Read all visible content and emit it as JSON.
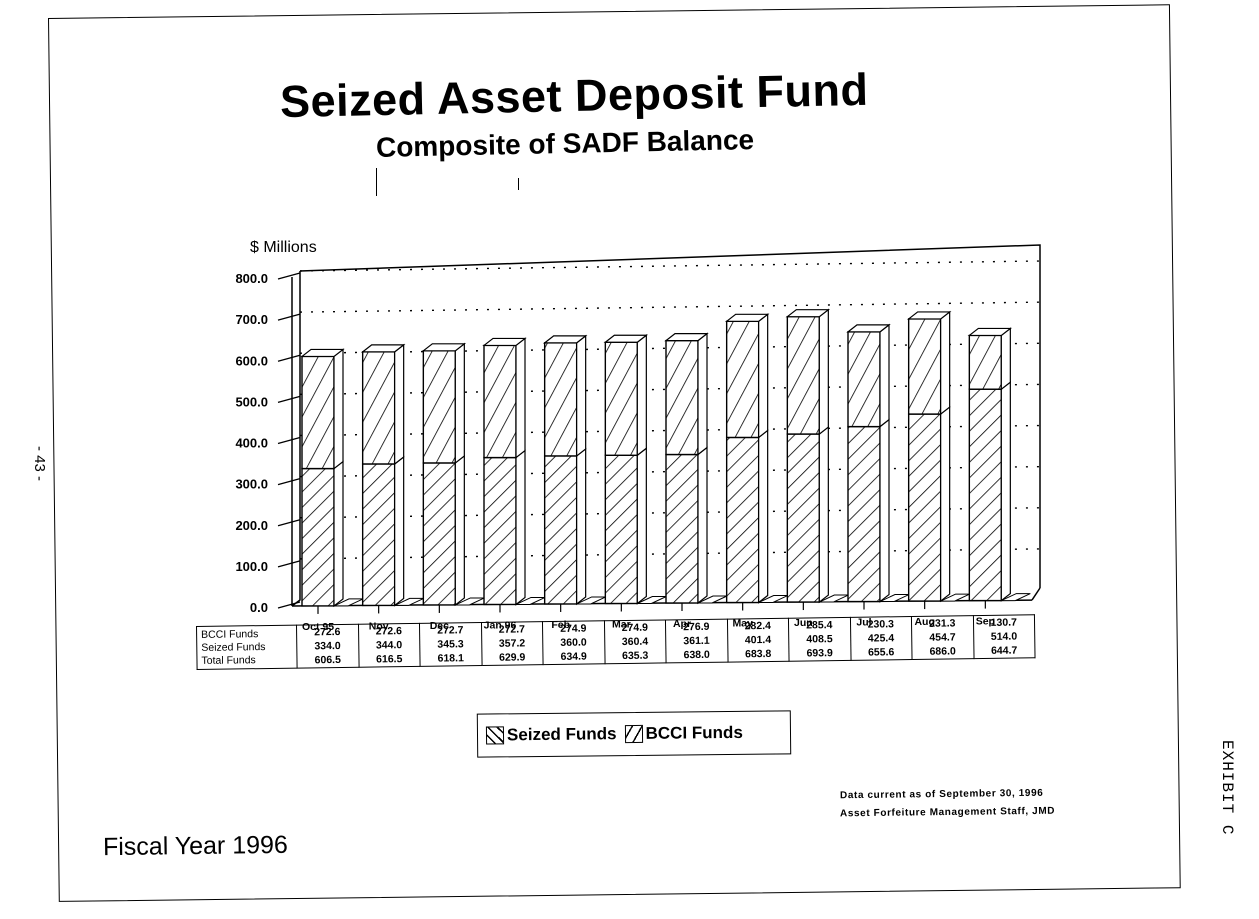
{
  "page": {
    "title": "Seized Asset Deposit Fund",
    "subtitle": "Composite of SADF Balance",
    "page_number": "- 43 -",
    "exhibit_label": "EXHIBIT C",
    "fiscal_year_label": "Fiscal Year 1996",
    "footnote_date": "Data current as of September 30, 1996",
    "footnote_source": "Asset Forfeiture Management Staff, JMD"
  },
  "legend": {
    "seized_label": "Seized Funds",
    "bcci_label": "BCCI Funds"
  },
  "table": {
    "row_headers": [
      "BCCI Funds",
      "Seized Funds",
      "Total Funds"
    ],
    "columns": [
      {
        "month": "Oct 95",
        "bcci": "272.6",
        "seized": "334.0",
        "total": "606.5"
      },
      {
        "month": "Nov",
        "bcci": "272.6",
        "seized": "344.0",
        "total": "616.5"
      },
      {
        "month": "Dec",
        "bcci": "272.7",
        "seized": "345.3",
        "total": "618.1"
      },
      {
        "month": "Jan 96",
        "bcci": "272.7",
        "seized": "357.2",
        "total": "629.9"
      },
      {
        "month": "Feb",
        "bcci": "274.9",
        "seized": "360.0",
        "total": "634.9"
      },
      {
        "month": "Mar",
        "bcci": "274.9",
        "seized": "360.4",
        "total": "635.3"
      },
      {
        "month": "Apr",
        "bcci": "276.9",
        "seized": "361.1",
        "total": "638.0"
      },
      {
        "month": "May",
        "bcci": "282.4",
        "seized": "401.4",
        "total": "683.8"
      },
      {
        "month": "Jun",
        "bcci": "285.4",
        "seized": "408.5",
        "total": "693.9"
      },
      {
        "month": "Jul",
        "bcci": "230.3",
        "seized": "425.4",
        "total": "655.6"
      },
      {
        "month": "Aug",
        "bcci": "231.3",
        "seized": "454.7",
        "total": "686.0"
      },
      {
        "month": "Sep",
        "bcci": "130.7",
        "seized": "514.0",
        "total": "644.7"
      }
    ]
  },
  "chart_data": {
    "type": "bar",
    "stacked": true,
    "style": "3d-hatched",
    "title": "Seized Asset Deposit Fund",
    "subtitle": "Composite of SADF Balance",
    "xlabel": "",
    "ylabel": "$ Millions",
    "ylim": [
      0,
      800
    ],
    "yticks": [
      "0.0",
      "100.0",
      "200.0",
      "300.0",
      "400.0",
      "500.0",
      "600.0",
      "700.0",
      "800.0"
    ],
    "grid": "dotted horizontal",
    "legend_position": "bottom-center",
    "categories": [
      "Oct 95",
      "Nov",
      "Dec",
      "Jan 96",
      "Feb",
      "Mar",
      "Apr",
      "May",
      "Jun",
      "Jul",
      "Aug",
      "Sep"
    ],
    "series": [
      {
        "name": "Seized Funds",
        "pattern": "back-diagonal hatch",
        "values": [
          334.0,
          344.0,
          345.3,
          357.2,
          360.0,
          360.4,
          361.1,
          401.4,
          408.5,
          425.4,
          454.7,
          514.0
        ]
      },
      {
        "name": "BCCI Funds",
        "pattern": "forward-diagonal hatch",
        "values": [
          272.6,
          272.6,
          272.7,
          272.7,
          274.9,
          274.9,
          276.9,
          282.4,
          285.4,
          230.3,
          231.3,
          130.7
        ]
      }
    ],
    "totals": [
      606.5,
      616.5,
      618.1,
      629.9,
      634.9,
      635.3,
      638.0,
      683.8,
      693.9,
      655.6,
      686.0,
      644.7
    ]
  }
}
